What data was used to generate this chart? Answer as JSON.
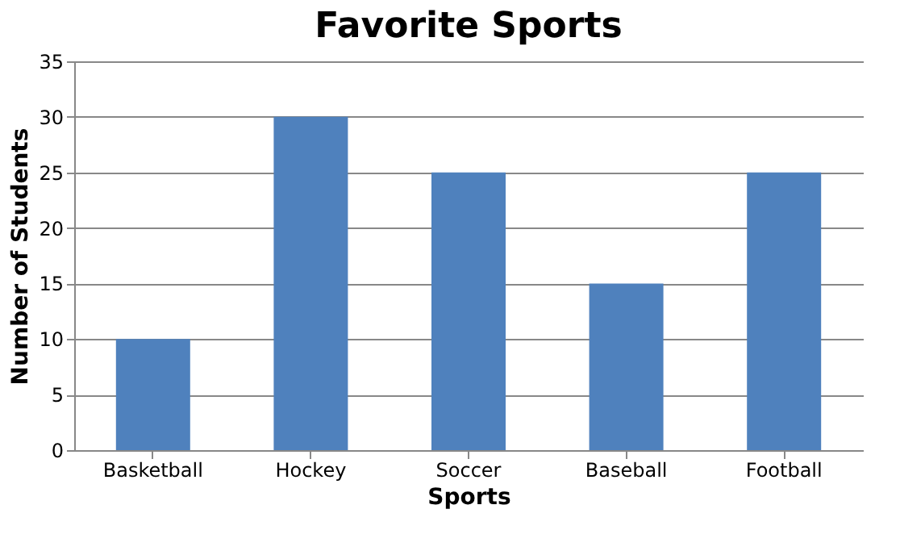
{
  "chart_data": {
    "type": "bar",
    "title": "Favorite Sports",
    "xlabel": "Sports",
    "ylabel": "Number of Students",
    "categories": [
      "Basketball",
      "Hockey",
      "Soccer",
      "Baseball",
      "Football"
    ],
    "values": [
      10,
      30,
      25,
      15,
      25
    ],
    "color": "#4f81bd",
    "ylim": [
      0,
      35
    ],
    "yticks": [
      0,
      5,
      10,
      15,
      20,
      25,
      30,
      35
    ],
    "grid": "y"
  }
}
